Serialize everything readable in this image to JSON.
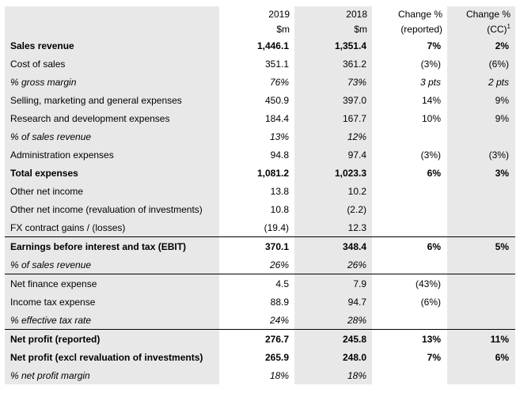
{
  "header": {
    "col_2019": "2019",
    "col_2018": "2018",
    "col_reported": "Change %",
    "col_cc": "Change %",
    "unit_2019": "$m",
    "unit_2018": "$m",
    "sub_reported": "(reported)",
    "sub_cc": "(CC)",
    "sub_cc_note": "1"
  },
  "rows": [
    {
      "label": "Sales revenue",
      "v2019": "1,446.1",
      "v2018": "1,351.4",
      "rep": "7%",
      "cc": "2%"
    },
    {
      "label": "Cost of sales",
      "v2019": "351.1",
      "v2018": "361.2",
      "rep": "(3%)",
      "cc": "(6%)"
    },
    {
      "label": "% gross margin",
      "v2019": "76%",
      "v2018": "73%",
      "rep": "3 pts",
      "cc": "2 pts"
    },
    {
      "label": "Selling, marketing and general expenses",
      "v2019": "450.9",
      "v2018": "397.0",
      "rep": "14%",
      "cc": "9%"
    },
    {
      "label": "Research and development expenses",
      "v2019": "184.4",
      "v2018": "167.7",
      "rep": "10%",
      "cc": "9%"
    },
    {
      "label": "% of sales revenue",
      "v2019": "13%",
      "v2018": "12%",
      "rep": "",
      "cc": ""
    },
    {
      "label": "Administration expenses",
      "v2019": "94.8",
      "v2018": "97.4",
      "rep": "(3%)",
      "cc": "(3%)"
    },
    {
      "label": "Total expenses",
      "v2019": "1,081.2",
      "v2018": "1,023.3",
      "rep": "6%",
      "cc": "3%"
    },
    {
      "label": "Other net income",
      "v2019": "13.8",
      "v2018": "10.2",
      "rep": "",
      "cc": ""
    },
    {
      "label": "Other net income (revaluation of investments)",
      "v2019": "10.8",
      "v2018": "(2.2)",
      "rep": "",
      "cc": ""
    },
    {
      "label": "FX contract gains / (losses)",
      "v2019": "(19.4)",
      "v2018": "12.3",
      "rep": "",
      "cc": ""
    },
    {
      "label": "Earnings before interest and tax (EBIT)",
      "v2019": "370.1",
      "v2018": "348.4",
      "rep": "6%",
      "cc": "5%"
    },
    {
      "label": "% of sales revenue",
      "v2019": "26%",
      "v2018": "26%",
      "rep": "",
      "cc": ""
    },
    {
      "label": "Net finance expense",
      "v2019": "4.5",
      "v2018": "7.9",
      "rep": "(43%)",
      "cc": ""
    },
    {
      "label": "Income tax expense",
      "v2019": "88.9",
      "v2018": "94.7",
      "rep": "(6%)",
      "cc": ""
    },
    {
      "label": "% effective tax rate",
      "v2019": "24%",
      "v2018": "28%",
      "rep": "",
      "cc": ""
    },
    {
      "label": "Net profit (reported)",
      "v2019": "276.7",
      "v2018": "245.8",
      "rep": "13%",
      "cc": "11%"
    },
    {
      "label": "Net profit (excl revaluation of investments)",
      "v2019": "265.9",
      "v2018": "248.0",
      "rep": "7%",
      "cc": "6%"
    },
    {
      "label": "% net profit margin",
      "v2019": "18%",
      "v2018": "18%",
      "rep": "",
      "cc": ""
    }
  ]
}
